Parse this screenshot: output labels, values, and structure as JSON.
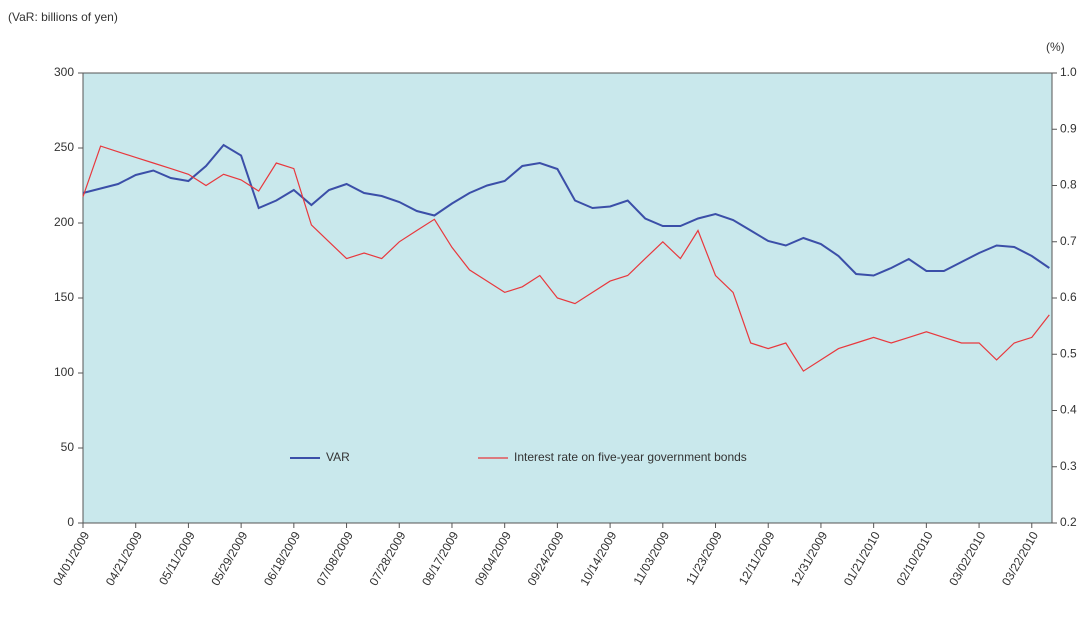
{
  "chart_data": {
    "type": "line",
    "y_axis_label": "(VaR: billions of yen)",
    "y2_axis_label": "(%)",
    "categories": [
      "04/01/2009",
      null,
      null,
      "04/21/2009",
      null,
      null,
      "05/11/2009",
      null,
      null,
      "05/29/2009",
      null,
      null,
      "06/18/2009",
      null,
      null,
      "07/08/2009",
      null,
      null,
      "07/28/2009",
      null,
      null,
      "08/17/2009",
      null,
      null,
      "09/04/2009",
      null,
      null,
      "09/24/2009",
      null,
      null,
      "10/14/2009",
      null,
      null,
      "11/03/2009",
      null,
      null,
      "11/23/2009",
      null,
      null,
      "12/11/2009",
      null,
      null,
      "12/31/2009",
      null,
      null,
      "01/21/2010",
      null,
      null,
      "02/10/2010",
      null,
      null,
      "03/02/2010",
      null,
      null,
      "03/22/2010",
      null
    ],
    "series": [
      {
        "name": "VAR",
        "color": "#3b4fa8",
        "axis": "y",
        "values": [
          220,
          223,
          226,
          232,
          235,
          230,
          228,
          238,
          252,
          245,
          210,
          215,
          222,
          212,
          222,
          226,
          220,
          218,
          214,
          208,
          205,
          213,
          220,
          225,
          228,
          238,
          240,
          236,
          215,
          210,
          211,
          215,
          203,
          198,
          198,
          203,
          206,
          202,
          195,
          188,
          185,
          190,
          186,
          178,
          166,
          165,
          170,
          176,
          168,
          168,
          174,
          180,
          185,
          184,
          178,
          170
        ]
      },
      {
        "name": "Interest rate on five-year government bonds",
        "color": "#e8383d",
        "axis": "y2",
        "values": [
          0.78,
          0.87,
          0.86,
          0.85,
          0.84,
          0.83,
          0.82,
          0.8,
          0.82,
          0.81,
          0.79,
          0.84,
          0.83,
          0.73,
          0.7,
          0.67,
          0.68,
          0.67,
          0.7,
          0.72,
          0.74,
          0.69,
          0.65,
          0.63,
          0.61,
          0.62,
          0.64,
          0.6,
          0.59,
          0.61,
          0.63,
          0.64,
          0.67,
          0.7,
          0.67,
          0.72,
          0.64,
          0.61,
          0.52,
          0.51,
          0.52,
          0.47,
          0.49,
          0.51,
          0.52,
          0.53,
          0.52,
          0.53,
          0.54,
          0.53,
          0.52,
          0.52,
          0.49,
          0.52,
          0.53,
          0.57
        ]
      }
    ],
    "ylim": [
      0,
      300
    ],
    "yticks": [
      0,
      50,
      100,
      150,
      200,
      250,
      300
    ],
    "y2lim": [
      0.2,
      1.0
    ],
    "y2ticks": [
      0.2,
      0.3,
      0.4,
      0.5,
      0.6,
      0.7,
      0.8,
      0.9,
      {
        "value": 1.0,
        "label": "1.0"
      }
    ],
    "plot_background": "#c9e8ec"
  }
}
